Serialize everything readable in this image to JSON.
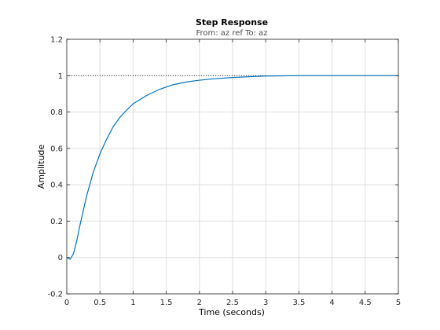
{
  "chart_data": {
    "type": "line",
    "title": "Step Response",
    "subtitle": "From: az ref  To: az",
    "xlabel": "Time (seconds)",
    "ylabel": "Amplitude",
    "xlim": [
      0,
      5
    ],
    "ylim": [
      -0.2,
      1.2
    ],
    "x_ticks": [
      0,
      0.5,
      1,
      1.5,
      2,
      2.5,
      3,
      3.5,
      4,
      4.5,
      5
    ],
    "y_ticks": [
      -0.2,
      0,
      0.2,
      0.4,
      0.6,
      0.8,
      1,
      1.2
    ],
    "x_tick_labels": [
      "0",
      "0.5",
      "1",
      "1.5",
      "2",
      "2.5",
      "3",
      "3.5",
      "4",
      "4.5",
      "5"
    ],
    "y_tick_labels": [
      "-0.2",
      "0",
      "0.2",
      "0.4",
      "0.6",
      "0.8",
      "1",
      "1.2"
    ],
    "grid": true,
    "steady_state_reference": {
      "value": 1,
      "x_range": [
        0,
        3
      ],
      "style": "dotted"
    },
    "series": [
      {
        "x": [
          0,
          0.05,
          0.1,
          0.15,
          0.2,
          0.3,
          0.4,
          0.5,
          0.6,
          0.7,
          0.8,
          0.9,
          1.0,
          1.2,
          1.4,
          1.6,
          1.8,
          2.0,
          2.2,
          2.5,
          2.8,
          3.0,
          3.5,
          4.0,
          4.5,
          5.0
        ],
        "y": [
          0,
          -0.01,
          0.02,
          0.09,
          0.18,
          0.34,
          0.47,
          0.57,
          0.65,
          0.72,
          0.77,
          0.81,
          0.845,
          0.89,
          0.925,
          0.95,
          0.965,
          0.975,
          0.982,
          0.99,
          0.995,
          0.998,
          1.0,
          1.0,
          1.0,
          1.0
        ]
      }
    ]
  },
  "colors": {
    "line": "#0072bd",
    "grid": "#dedede",
    "axes": "#262626",
    "reference": "#000000"
  }
}
